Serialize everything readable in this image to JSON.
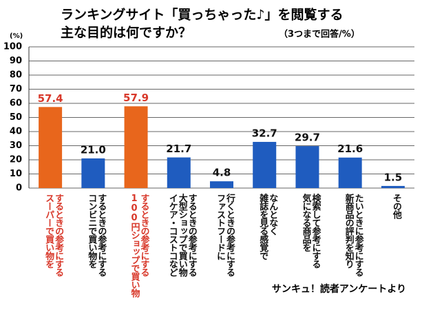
{
  "chart_data": {
    "type": "bar",
    "title": "ランキングサイト「買っちゃった♪」を閲覧する",
    "title_line2": "主な目的は何ですか？",
    "subtitle": "（3つまで回答/%）",
    "y_unit": "(%)",
    "source": "サンキュ！読者アンケートより",
    "categories": [
      "スーパーで買い物を\nするときの参考にする",
      "コンビニで買い物を\nするときの参考にする",
      "100円ショップで買い物\nするときの参考にする",
      "イケア・コストコなど\n大型ショップで買い物\nするときの参考にする",
      "ファストフードに\n行くときの参考にする",
      "雑誌を見る感覚で\nなんとなく",
      "気になる商品を\n検索して参考にする",
      "新商品の評判を知り\nたいときに参考にする",
      "その他"
    ],
    "values": [
      57.4,
      21.0,
      57.9,
      21.7,
      4.8,
      32.7,
      29.7,
      21.6,
      1.5
    ],
    "value_labels": [
      "57.4",
      "21.0",
      "57.9",
      "21.7",
      "4.8",
      "32.7",
      "29.7",
      "21.6",
      "1.5"
    ],
    "colors": [
      "#e8661c",
      "#1f5cbf",
      "#e8661c",
      "#1f5cbf",
      "#1f5cbf",
      "#1f5cbf",
      "#1f5cbf",
      "#1f5cbf",
      "#1f5cbf"
    ],
    "label_colors": [
      "#d8382a",
      "#111111",
      "#d8382a",
      "#111111",
      "#111111",
      "#111111",
      "#111111",
      "#111111",
      "#111111"
    ],
    "ylim": [
      0,
      100
    ],
    "yticks": [
      0,
      10,
      20,
      30,
      40,
      50,
      60,
      70,
      80,
      90,
      100
    ],
    "grid": true
  }
}
